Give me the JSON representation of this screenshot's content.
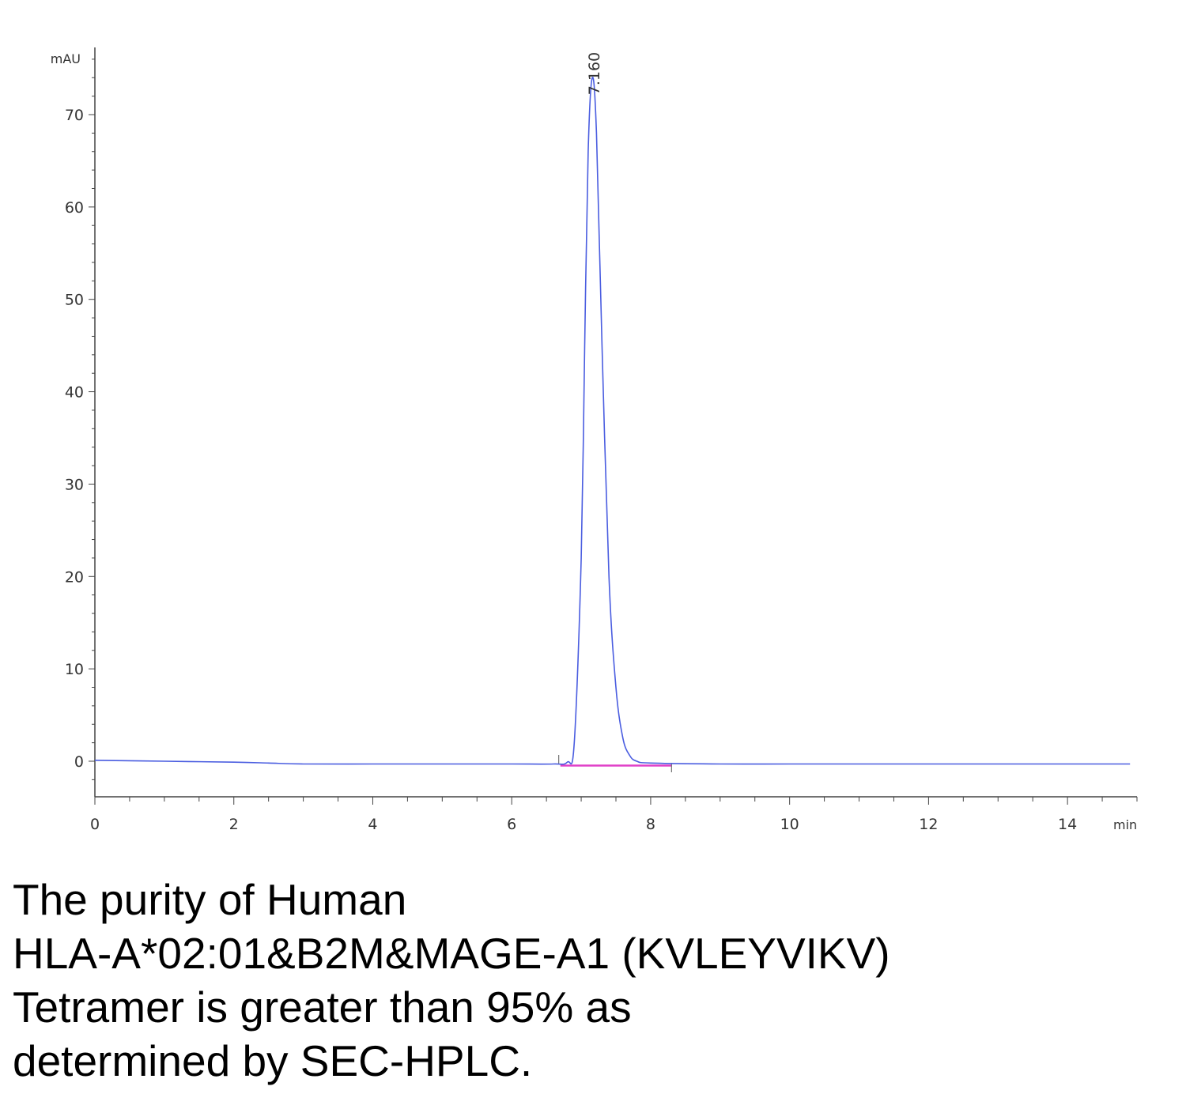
{
  "chart_data": {
    "type": "line",
    "x_unit": "min",
    "y_unit": "mAU",
    "xlim": [
      0,
      15
    ],
    "ylim": [
      -4,
      78
    ],
    "x_ticks": [
      0,
      2,
      4,
      6,
      8,
      10,
      12,
      14
    ],
    "y_ticks": [
      0,
      10,
      20,
      30,
      40,
      50,
      60,
      70
    ],
    "x_tick_labels": [
      "0",
      "2",
      "4",
      "6",
      "8",
      "10",
      "12",
      "14"
    ],
    "y_tick_labels": [
      "0",
      "10",
      "20",
      "30",
      "40",
      "50",
      "60",
      "70"
    ],
    "grid": false,
    "series": [
      {
        "color": "#4a5de0",
        "points": [
          [
            0,
            0.1
          ],
          [
            1,
            0.0
          ],
          [
            2,
            -0.1
          ],
          [
            2.5,
            -0.2
          ],
          [
            3,
            -0.3
          ],
          [
            4,
            -0.3
          ],
          [
            5,
            -0.3
          ],
          [
            6,
            -0.3
          ],
          [
            6.6,
            -0.3
          ],
          [
            6.8,
            -0.1
          ],
          [
            6.9,
            2.0
          ],
          [
            7.0,
            22.0
          ],
          [
            7.05,
            45.0
          ],
          [
            7.1,
            66.0
          ],
          [
            7.16,
            74.0
          ],
          [
            7.22,
            68.0
          ],
          [
            7.3,
            45.0
          ],
          [
            7.4,
            20.0
          ],
          [
            7.5,
            8.0
          ],
          [
            7.6,
            2.5
          ],
          [
            7.7,
            0.6
          ],
          [
            7.8,
            0.0
          ],
          [
            8,
            -0.2
          ],
          [
            9,
            -0.3
          ],
          [
            10,
            -0.3
          ],
          [
            11,
            -0.3
          ],
          [
            12,
            -0.3
          ],
          [
            13,
            -0.3
          ],
          [
            14,
            -0.3
          ],
          [
            14.9,
            -0.3
          ]
        ]
      }
    ],
    "baseline": {
      "color": "#e040c8",
      "x": [
        6.7,
        8.3
      ],
      "y": [
        -0.3,
        -0.3
      ]
    },
    "peak_annotations": [
      {
        "x": 7.16,
        "y": 74.0,
        "label": "7.160"
      }
    ]
  },
  "caption": {
    "lines": [
      "The purity of Human",
      "HLA-A*02:01&B2M&MAGE-A1 (KVLEYVIKV)",
      "Tetramer is greater than 95% as",
      "determined by SEC-HPLC."
    ]
  }
}
